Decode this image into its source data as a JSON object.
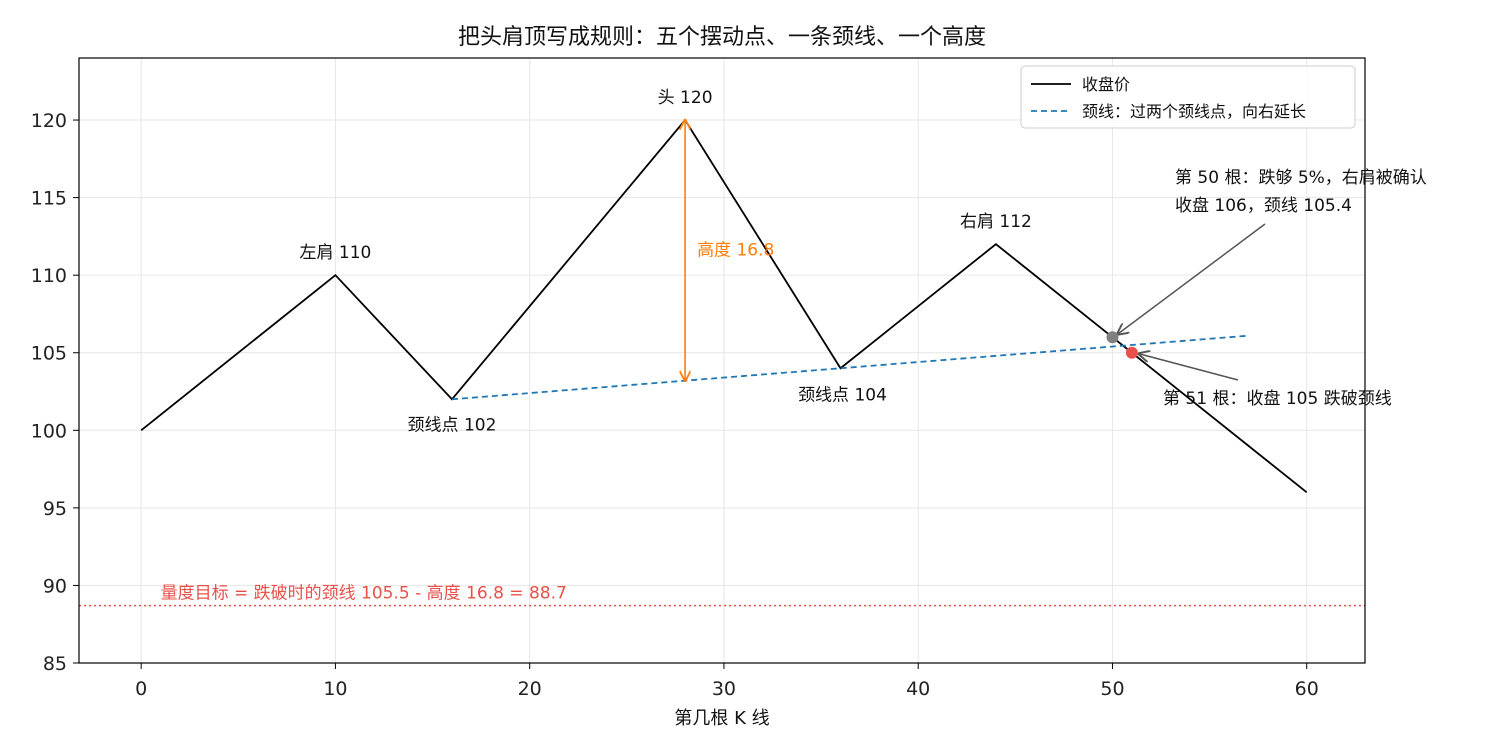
{
  "chart_data": {
    "type": "line",
    "title": "把头肩顶写成规则：五个摆动点、一条颈线、一个高度",
    "xlabel": "第几根 K 线",
    "ylabel": "",
    "xlim": [
      -3.2,
      63.0
    ],
    "ylim": [
      85,
      124
    ],
    "xticks": [
      0,
      10,
      20,
      30,
      40,
      50,
      60
    ],
    "yticks": [
      85,
      90,
      95,
      100,
      105,
      110,
      115,
      120
    ],
    "grid": true,
    "legend_position": "top-right",
    "series": [
      {
        "name": "收盘价",
        "color": "#000000",
        "style": "solid",
        "points": [
          [
            0,
            100
          ],
          [
            10,
            110
          ],
          [
            16,
            102
          ],
          [
            28,
            120
          ],
          [
            36,
            104
          ],
          [
            44,
            112
          ],
          [
            50,
            106
          ],
          [
            51,
            105
          ],
          [
            60,
            96
          ]
        ]
      },
      {
        "name": "颈线：过两个颈线点，向右延长",
        "color": "#1f77b4",
        "style": "dashed",
        "points": [
          [
            16,
            102
          ],
          [
            57,
            106.1
          ]
        ]
      }
    ],
    "target_line": {
      "y": 88.7,
      "color": "#e8504a",
      "label": "量度目标 = 跌破时的颈线 105.5 - 高度 16.8 = 88.7"
    },
    "height_arrow": {
      "x": 28,
      "y_top": 120,
      "y_bottom": 103.2,
      "color": "#ff7f0e",
      "label": "高度 16.8"
    },
    "markers": [
      {
        "x": 50,
        "y": 106,
        "color": "#808080"
      },
      {
        "x": 51,
        "y": 105,
        "color": "#e8504a"
      }
    ],
    "point_labels": [
      {
        "text": "左肩 110",
        "x": 10,
        "y": 110
      },
      {
        "text": "颈线点 102",
        "x": 16,
        "y": 102
      },
      {
        "text": "头 120",
        "x": 28,
        "y": 120
      },
      {
        "text": "颈线点 104",
        "x": 36,
        "y": 104
      },
      {
        "text": "右肩 112",
        "x": 44,
        "y": 112
      }
    ],
    "callouts": [
      {
        "lines": [
          "第 50 根：跌够 5%，右肩被确认",
          "收盘 106，颈线 105.4"
        ],
        "target_x": 50,
        "target_y": 106
      },
      {
        "lines": [
          "第 51 根：收盘 105 跌破颈线"
        ],
        "target_x": 51,
        "target_y": 105
      }
    ]
  }
}
